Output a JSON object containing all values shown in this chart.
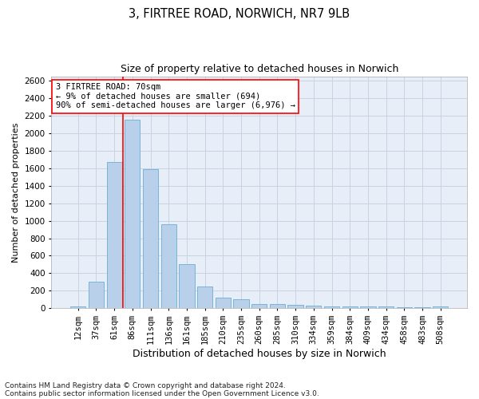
{
  "title_line1": "3, FIRTREE ROAD, NORWICH, NR7 9LB",
  "title_line2": "Size of property relative to detached houses in Norwich",
  "xlabel": "Distribution of detached houses by size in Norwich",
  "ylabel": "Number of detached properties",
  "footnote1": "Contains HM Land Registry data © Crown copyright and database right 2024.",
  "footnote2": "Contains public sector information licensed under the Open Government Licence v3.0.",
  "categories": [
    "12sqm",
    "37sqm",
    "61sqm",
    "86sqm",
    "111sqm",
    "136sqm",
    "161sqm",
    "185sqm",
    "210sqm",
    "235sqm",
    "260sqm",
    "285sqm",
    "310sqm",
    "334sqm",
    "359sqm",
    "384sqm",
    "409sqm",
    "434sqm",
    "458sqm",
    "483sqm",
    "508sqm"
  ],
  "values": [
    25,
    300,
    1670,
    2150,
    1590,
    960,
    500,
    250,
    120,
    100,
    50,
    50,
    35,
    30,
    20,
    20,
    20,
    20,
    10,
    10,
    25
  ],
  "bar_color": "#b8d0ea",
  "bar_edge_color": "#6baed6",
  "grid_color": "#c8d4e4",
  "background_color": "#e8eef8",
  "vline_color": "red",
  "vline_x_index": 2.5,
  "annotation_line1": "3 FIRTREE ROAD: 70sqm",
  "annotation_line2": "← 9% of detached houses are smaller (694)",
  "annotation_line3": "90% of semi-detached houses are larger (6,976) →",
  "annotation_box_color": "white",
  "annotation_box_edge": "red",
  "ylim": [
    0,
    2650
  ],
  "yticks": [
    0,
    200,
    400,
    600,
    800,
    1000,
    1200,
    1400,
    1600,
    1800,
    2000,
    2200,
    2400,
    2600
  ],
  "title1_fontsize": 10.5,
  "title2_fontsize": 9,
  "ylabel_fontsize": 8,
  "xlabel_fontsize": 9,
  "tick_fontsize": 7.5,
  "annot_fontsize": 7.5,
  "footnote_fontsize": 6.5
}
